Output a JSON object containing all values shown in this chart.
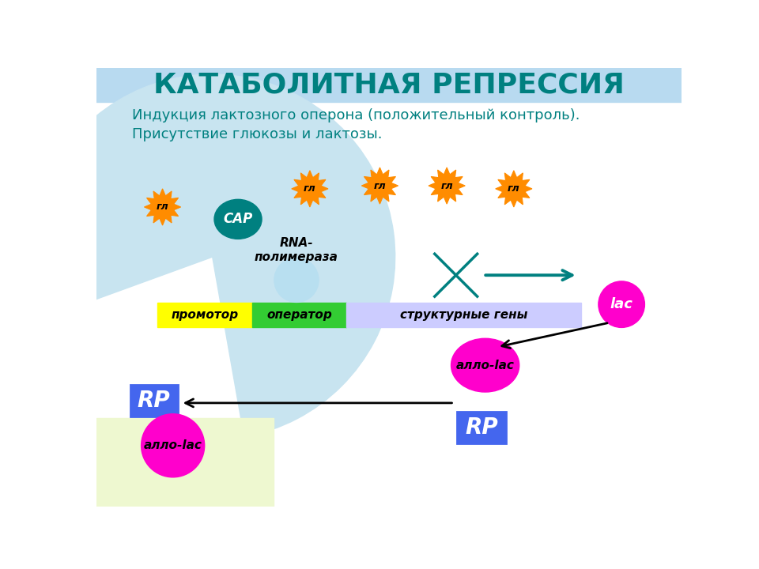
{
  "title": "КАТАБОЛИТНАЯ РЕПРЕССИЯ",
  "title_color": "#008080",
  "subtitle1": "Индукция лактозного оперона (положительный контроль).",
  "subtitle2": "Присутствие глюкозы и лактозы.",
  "text_color": "#008080",
  "promoter_color": "#ffff00",
  "operator_color": "#33cc33",
  "structural_color": "#ccccff",
  "CAP_color": "#008080",
  "rna_pol_color": "#b8dff0",
  "gl_outer_color": "#ff8c00",
  "gl_inner_color": "#ffa040",
  "magenta_color": "#ff00cc",
  "blue_box_color": "#4466ee",
  "lac_color": "#ff00cc",
  "arrow_color": "#008080",
  "cross_color": "#008080",
  "top_band_color": "#b8daf0",
  "circle_bg_color": "#c8e4f0",
  "yellow_bg_color": "#eef8d0"
}
